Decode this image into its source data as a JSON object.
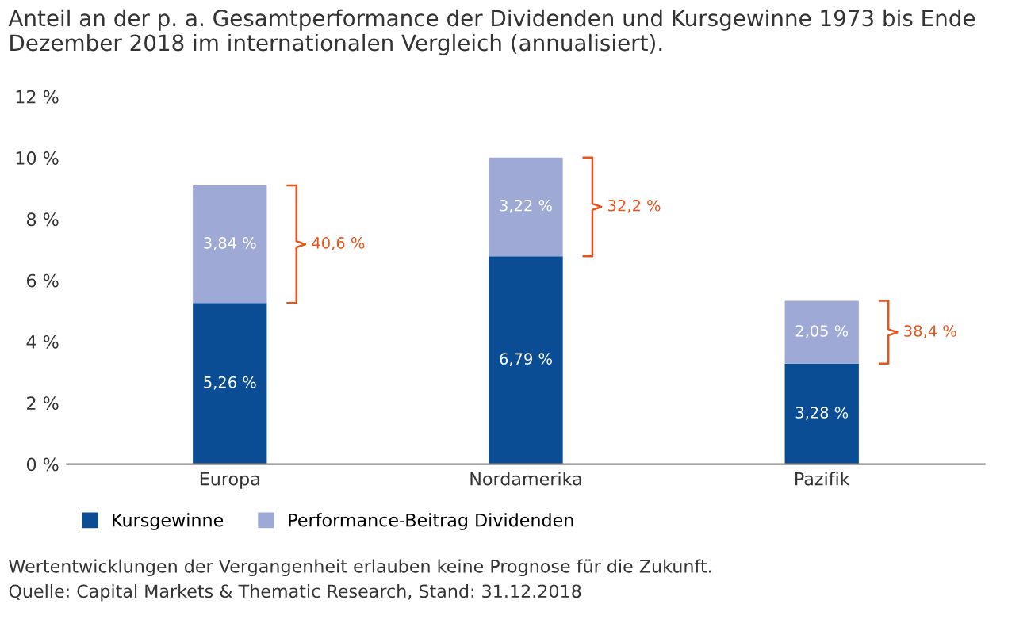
{
  "chart_data": {
    "type": "bar",
    "stacked": true,
    "title": "Anteil an der p. a. Gesamtperformance der Dividenden und Kursgewinne 1973 bis Ende Dezember 2018 im internationalen Vergleich (annualisiert).",
    "categories": [
      "Europa",
      "Nordamerika",
      "Pazifik"
    ],
    "series": [
      {
        "name": "Kursgewinne",
        "color": "#0b4d94",
        "values": [
          5.26,
          6.79,
          3.28
        ],
        "value_labels": [
          "5,26 %",
          "6,79 %",
          "3,28 %"
        ]
      },
      {
        "name": "Performance-Beitrag Dividenden",
        "color": "#9ea9d5",
        "values": [
          3.84,
          3.22,
          2.05
        ],
        "value_labels": [
          "3,84 %",
          "3,22 %",
          "2,05 %"
        ]
      }
    ],
    "ylim": [
      0,
      12
    ],
    "yticks": [
      {
        "value": 0,
        "label": "0 %"
      },
      {
        "value": 2,
        "label": "2 %"
      },
      {
        "value": 4,
        "label": "4 %"
      },
      {
        "value": 6,
        "label": "6 %"
      },
      {
        "value": 8,
        "label": "8 %"
      },
      {
        "value": 10,
        "label": "10 %"
      },
      {
        "value": 12,
        "label": "12 %"
      }
    ],
    "grid": false,
    "legend": "bottom left",
    "annotations": [
      "40,6 %",
      "32,2 %",
      "38,4 %",
      "Wertentwicklungen der Vergangenheit erlauben keine Prognose für die Zukunft.",
      "Quelle: Capital Markets & Thematic Research, Stand: 31.12.2018"
    ]
  }
}
